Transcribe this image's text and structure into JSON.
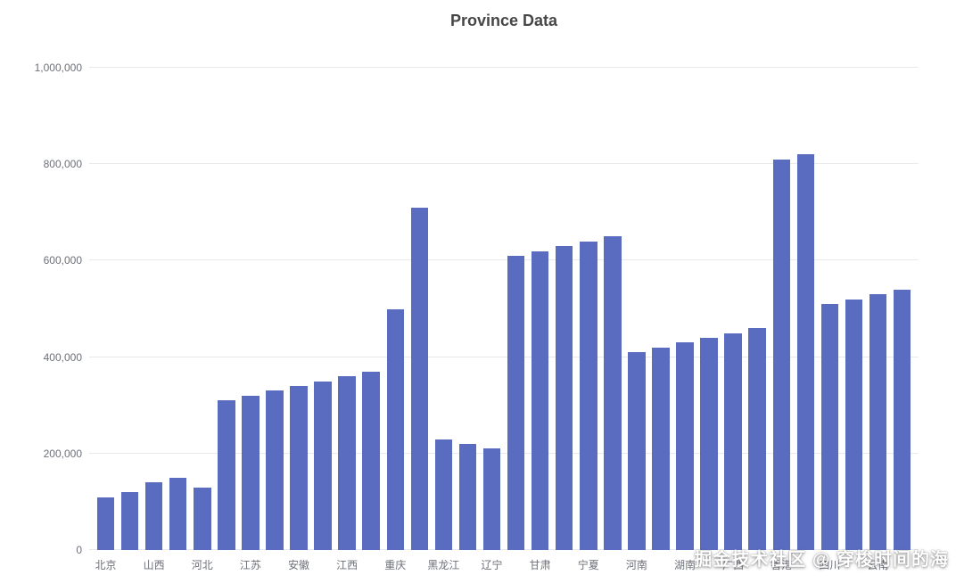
{
  "watermark": "掘金技术社区 @ 穿梭时间的海",
  "colors": {
    "bar": "#5a6cc0",
    "grid": "#e9e9e9",
    "axis_label": "#6e7079",
    "title": "#464646",
    "background": "#ffffff"
  },
  "chart_data": {
    "type": "bar",
    "title": "Province Data",
    "xlabel": "",
    "ylabel": "",
    "ylim": [
      0,
      1000000
    ],
    "grid": true,
    "legend_position": "none",
    "y_ticks": [
      {
        "value": 0,
        "label": "0"
      },
      {
        "value": 200000,
        "label": "200,000"
      },
      {
        "value": 400000,
        "label": "400,000"
      },
      {
        "value": 600000,
        "label": "600,000"
      },
      {
        "value": 800000,
        "label": "800,000"
      },
      {
        "value": 1000000,
        "label": "1,000,000"
      }
    ],
    "categories": [
      "北京",
      "",
      "山西",
      "",
      "河北",
      "",
      "江苏",
      "",
      "安徽",
      "",
      "江西",
      "",
      "重庆",
      "",
      "黑龙江",
      "",
      "辽宁",
      "",
      "甘肃",
      "",
      "宁夏",
      "",
      "河南",
      "",
      "湖南",
      "",
      "广西",
      "",
      "香港",
      "",
      "四川",
      "",
      "云南",
      ""
    ],
    "values": [
      110000,
      120000,
      140000,
      150000,
      130000,
      310000,
      320000,
      330000,
      340000,
      350000,
      360000,
      370000,
      500000,
      710000,
      230000,
      220000,
      210000,
      610000,
      620000,
      630000,
      640000,
      650000,
      410000,
      420000,
      430000,
      440000,
      450000,
      460000,
      810000,
      820000,
      510000,
      520000,
      530000,
      540000
    ]
  }
}
